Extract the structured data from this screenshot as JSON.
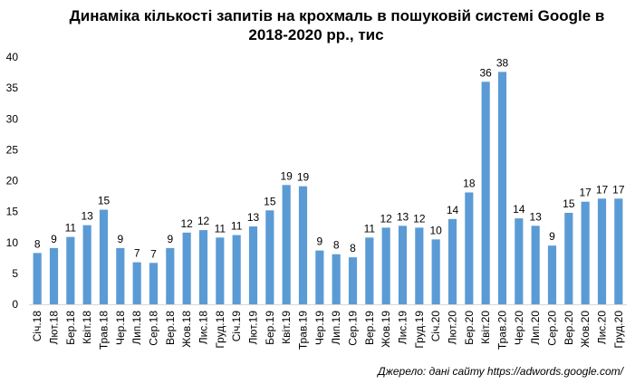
{
  "chart_data": {
    "type": "bar",
    "title_lines": [
      "Динаміка кількості запитів на крохмаль в пошуковій системі Google в",
      "2018-2020 рр., тис"
    ],
    "categories": [
      "Січ.18",
      "Лют.18",
      "Бер.18",
      "Квіт.18",
      "Трав.18",
      "Чер.18",
      "Лип.18",
      "Сер.18",
      "Вер.18",
      "Жов.18",
      "Лис.18",
      "Груд.18",
      "Січ.19",
      "Лют.19",
      "Бер.19",
      "Квіт.19",
      "Трав.19",
      "Чер.19",
      "Лип.19",
      "Сер.19",
      "Вер.19",
      "Жов.19",
      "Лис.19",
      "Груд.19",
      "Січ.20",
      "Лют.20",
      "Бер.20",
      "Квіт.20",
      "Трав.20",
      "Чер.20",
      "Лип.20",
      "Сер.20",
      "Вер.20",
      "Жов.20",
      "Лис.20",
      "Груд.20"
    ],
    "values": [
      8.3,
      9.1,
      10.9,
      12.8,
      15.3,
      9.1,
      6.8,
      6.7,
      9.1,
      11.6,
      12.0,
      10.8,
      11.2,
      12.6,
      15.2,
      19.3,
      19.1,
      8.7,
      8.1,
      7.6,
      10.8,
      12.4,
      12.7,
      12.4,
      10.5,
      13.8,
      18.1,
      36.0,
      37.6,
      13.9,
      12.7,
      9.5,
      14.8,
      16.6,
      17.1,
      17.1
    ],
    "data_labels": [
      "8",
      "9",
      "11",
      "13",
      "15",
      "9",
      "7",
      "7",
      "9",
      "12",
      "12",
      "11",
      "11",
      "13",
      "15",
      "19",
      "19",
      "9",
      "8",
      "8",
      "11",
      "12",
      "13",
      "12",
      "10",
      "14",
      "18",
      "36",
      "38",
      "14",
      "13",
      "9",
      "15",
      "17",
      "17",
      "17"
    ],
    "ylim": [
      0,
      40
    ],
    "yticks": [
      0,
      5,
      10,
      15,
      20,
      25,
      30,
      35,
      40
    ],
    "grid": false,
    "legend": "none",
    "bar_color": "#5b9bd5",
    "source": "Джерело: дані сайту https://adwords.google.com/"
  }
}
